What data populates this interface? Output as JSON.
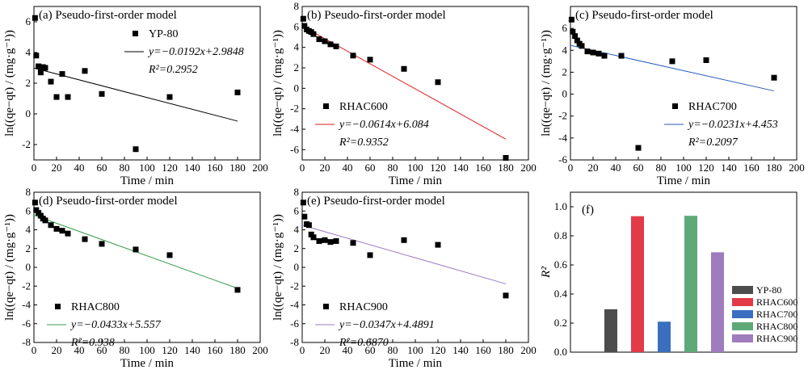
{
  "chart_data": [
    {
      "type": "scatter",
      "panel": "a",
      "title": "(a) Pseudo-first-order model",
      "xlabel": "Time / min",
      "ylabel": "ln((qe−qt) / (mg·g⁻¹))",
      "xlim": [
        0,
        200
      ],
      "ylim": [
        -3,
        7
      ],
      "xticks": [
        0,
        20,
        40,
        60,
        80,
        100,
        120,
        140,
        160,
        180,
        200
      ],
      "yticks": [
        -2,
        0,
        2,
        4,
        6
      ],
      "legend": "top-right",
      "series": [
        {
          "name": "YP-80",
          "points": [
            [
              1,
              6.25
            ],
            [
              2,
              3.8
            ],
            [
              4,
              3.1
            ],
            [
              6,
              2.7
            ],
            [
              8,
              3.05
            ],
            [
              10,
              3.0
            ],
            [
              15,
              2.1
            ],
            [
              20,
              1.1
            ],
            [
              25,
              2.6
            ],
            [
              30,
              1.1
            ],
            [
              45,
              2.8
            ],
            [
              60,
              1.3
            ],
            [
              90,
              -2.3
            ],
            [
              120,
              1.1
            ],
            [
              180,
              1.4
            ]
          ]
        }
      ],
      "fit": {
        "x": [
          0,
          180
        ],
        "equation": "y=−0.0192x+2.9848",
        "r2": "R²=0.2952",
        "color": "#000000"
      }
    },
    {
      "type": "scatter",
      "panel": "b",
      "title": "(b) Pseudo-first-order model",
      "xlabel": "Time / min",
      "ylabel": "ln((qe−qt) / (mg·g⁻¹))",
      "xlim": [
        0,
        200
      ],
      "ylim": [
        -7,
        8
      ],
      "xticks": [
        0,
        20,
        40,
        60,
        80,
        100,
        120,
        140,
        160,
        180,
        200
      ],
      "yticks": [
        -6,
        -4,
        -2,
        0,
        2,
        4,
        6,
        8
      ],
      "legend": "bottom-left",
      "series": [
        {
          "name": "RHAC600",
          "points": [
            [
              1,
              6.8
            ],
            [
              2,
              6.1
            ],
            [
              4,
              5.75
            ],
            [
              6,
              5.6
            ],
            [
              8,
              5.5
            ],
            [
              10,
              5.3
            ],
            [
              15,
              4.8
            ],
            [
              20,
              4.6
            ],
            [
              25,
              4.3
            ],
            [
              30,
              4.1
            ],
            [
              45,
              3.2
            ],
            [
              60,
              2.8
            ],
            [
              90,
              1.9
            ],
            [
              120,
              0.6
            ],
            [
              180,
              -6.8
            ]
          ]
        }
      ],
      "fit": {
        "x": [
          0,
          180
        ],
        "equation": "y=−0.0614x+6.084",
        "r2": "R²=0.9352",
        "color": "#e11d1d"
      }
    },
    {
      "type": "scatter",
      "panel": "c",
      "title": "(c) Pseudo-first-order model",
      "xlabel": "Time / min",
      "ylabel": "ln((qe−qt) / (mg·g⁻¹))",
      "xlim": [
        0,
        200
      ],
      "ylim": [
        -6,
        8
      ],
      "xticks": [
        0,
        20,
        40,
        60,
        80,
        100,
        120,
        140,
        160,
        180,
        200
      ],
      "yticks": [
        -6,
        -4,
        -2,
        0,
        2,
        4,
        6
      ],
      "legend": "bottom-right",
      "series": [
        {
          "name": "RHAC700",
          "points": [
            [
              1,
              6.8
            ],
            [
              2,
              5.7
            ],
            [
              4,
              5.3
            ],
            [
              6,
              4.9
            ],
            [
              8,
              4.6
            ],
            [
              10,
              4.4
            ],
            [
              15,
              3.9
            ],
            [
              20,
              3.8
            ],
            [
              25,
              3.7
            ],
            [
              30,
              3.5
            ],
            [
              45,
              3.5
            ],
            [
              60,
              -4.9
            ],
            [
              90,
              3.0
            ],
            [
              120,
              3.1
            ],
            [
              180,
              1.5
            ]
          ]
        }
      ],
      "fit": {
        "x": [
          0,
          180
        ],
        "equation": "y=−0.0231x+4.453",
        "r2": "R²=0.2097",
        "color": "#2a5cb8"
      }
    },
    {
      "type": "scatter",
      "panel": "d",
      "title": "(d) Pseudo-first-order model",
      "xlabel": "Time / min",
      "ylabel": "ln((qe−qt) / (mg·g⁻¹))",
      "xlim": [
        0,
        200
      ],
      "ylim": [
        -8,
        8
      ],
      "xticks": [
        0,
        20,
        40,
        60,
        80,
        100,
        120,
        140,
        160,
        180,
        200
      ],
      "yticks": [
        -8,
        -6,
        -4,
        -2,
        0,
        2,
        4,
        6,
        8
      ],
      "legend": "bottom-left",
      "series": [
        {
          "name": "RHAC800",
          "points": [
            [
              1,
              6.9
            ],
            [
              2,
              6.1
            ],
            [
              4,
              5.8
            ],
            [
              6,
              5.5
            ],
            [
              8,
              5.2
            ],
            [
              10,
              5.0
            ],
            [
              15,
              4.5
            ],
            [
              20,
              4.1
            ],
            [
              25,
              3.9
            ],
            [
              30,
              3.6
            ],
            [
              45,
              3.0
            ],
            [
              60,
              2.5
            ],
            [
              90,
              1.9
            ],
            [
              120,
              1.3
            ],
            [
              180,
              -2.4
            ]
          ]
        }
      ],
      "fit": {
        "x": [
          0,
          180
        ],
        "equation": "y=−0.0433x+5.557",
        "r2": "R²=0.938",
        "color": "#3a9a4a"
      }
    },
    {
      "type": "scatter",
      "panel": "e",
      "title": "(e) Pseudo-first-order model",
      "xlabel": "Time / min",
      "ylabel": "ln((qe−qt) / (mg·g⁻¹))",
      "xlim": [
        0,
        200
      ],
      "ylim": [
        -8,
        8
      ],
      "xticks": [
        0,
        20,
        40,
        60,
        80,
        100,
        120,
        140,
        160,
        180,
        200
      ],
      "yticks": [
        -8,
        -6,
        -4,
        -2,
        0,
        2,
        4,
        6,
        8
      ],
      "legend": "bottom-left",
      "series": [
        {
          "name": "RHAC900",
          "points": [
            [
              1,
              6.9
            ],
            [
              2,
              5.4
            ],
            [
              4,
              4.6
            ],
            [
              6,
              4.5
            ],
            [
              8,
              3.5
            ],
            [
              10,
              3.2
            ],
            [
              15,
              2.8
            ],
            [
              20,
              2.9
            ],
            [
              25,
              2.7
            ],
            [
              30,
              2.8
            ],
            [
              45,
              2.6
            ],
            [
              60,
              1.3
            ],
            [
              90,
              2.9
            ],
            [
              120,
              2.4
            ],
            [
              180,
              -3.0
            ]
          ]
        }
      ],
      "fit": {
        "x": [
          0,
          180
        ],
        "equation": "y=−0.0347x+4.4891",
        "r2": "R²=0.6870",
        "color": "#9b7cc0"
      }
    },
    {
      "type": "bar",
      "panel": "f",
      "title": "(f)",
      "xlabel": "",
      "ylabel": "R²",
      "ylim": [
        0,
        1.1
      ],
      "yticks": [
        0.0,
        0.2,
        0.4,
        0.6,
        0.8,
        1.0
      ],
      "legend": "bottom-right",
      "categories": [
        "YP-80",
        "RHAC600",
        "RHAC700",
        "RHAC800",
        "RHAC900"
      ],
      "values": [
        0.2952,
        0.9352,
        0.2097,
        0.938,
        0.687
      ],
      "colors": [
        "#4d4d4d",
        "#e23a47",
        "#3a6fc0",
        "#5fa878",
        "#9e7cbe"
      ]
    }
  ]
}
